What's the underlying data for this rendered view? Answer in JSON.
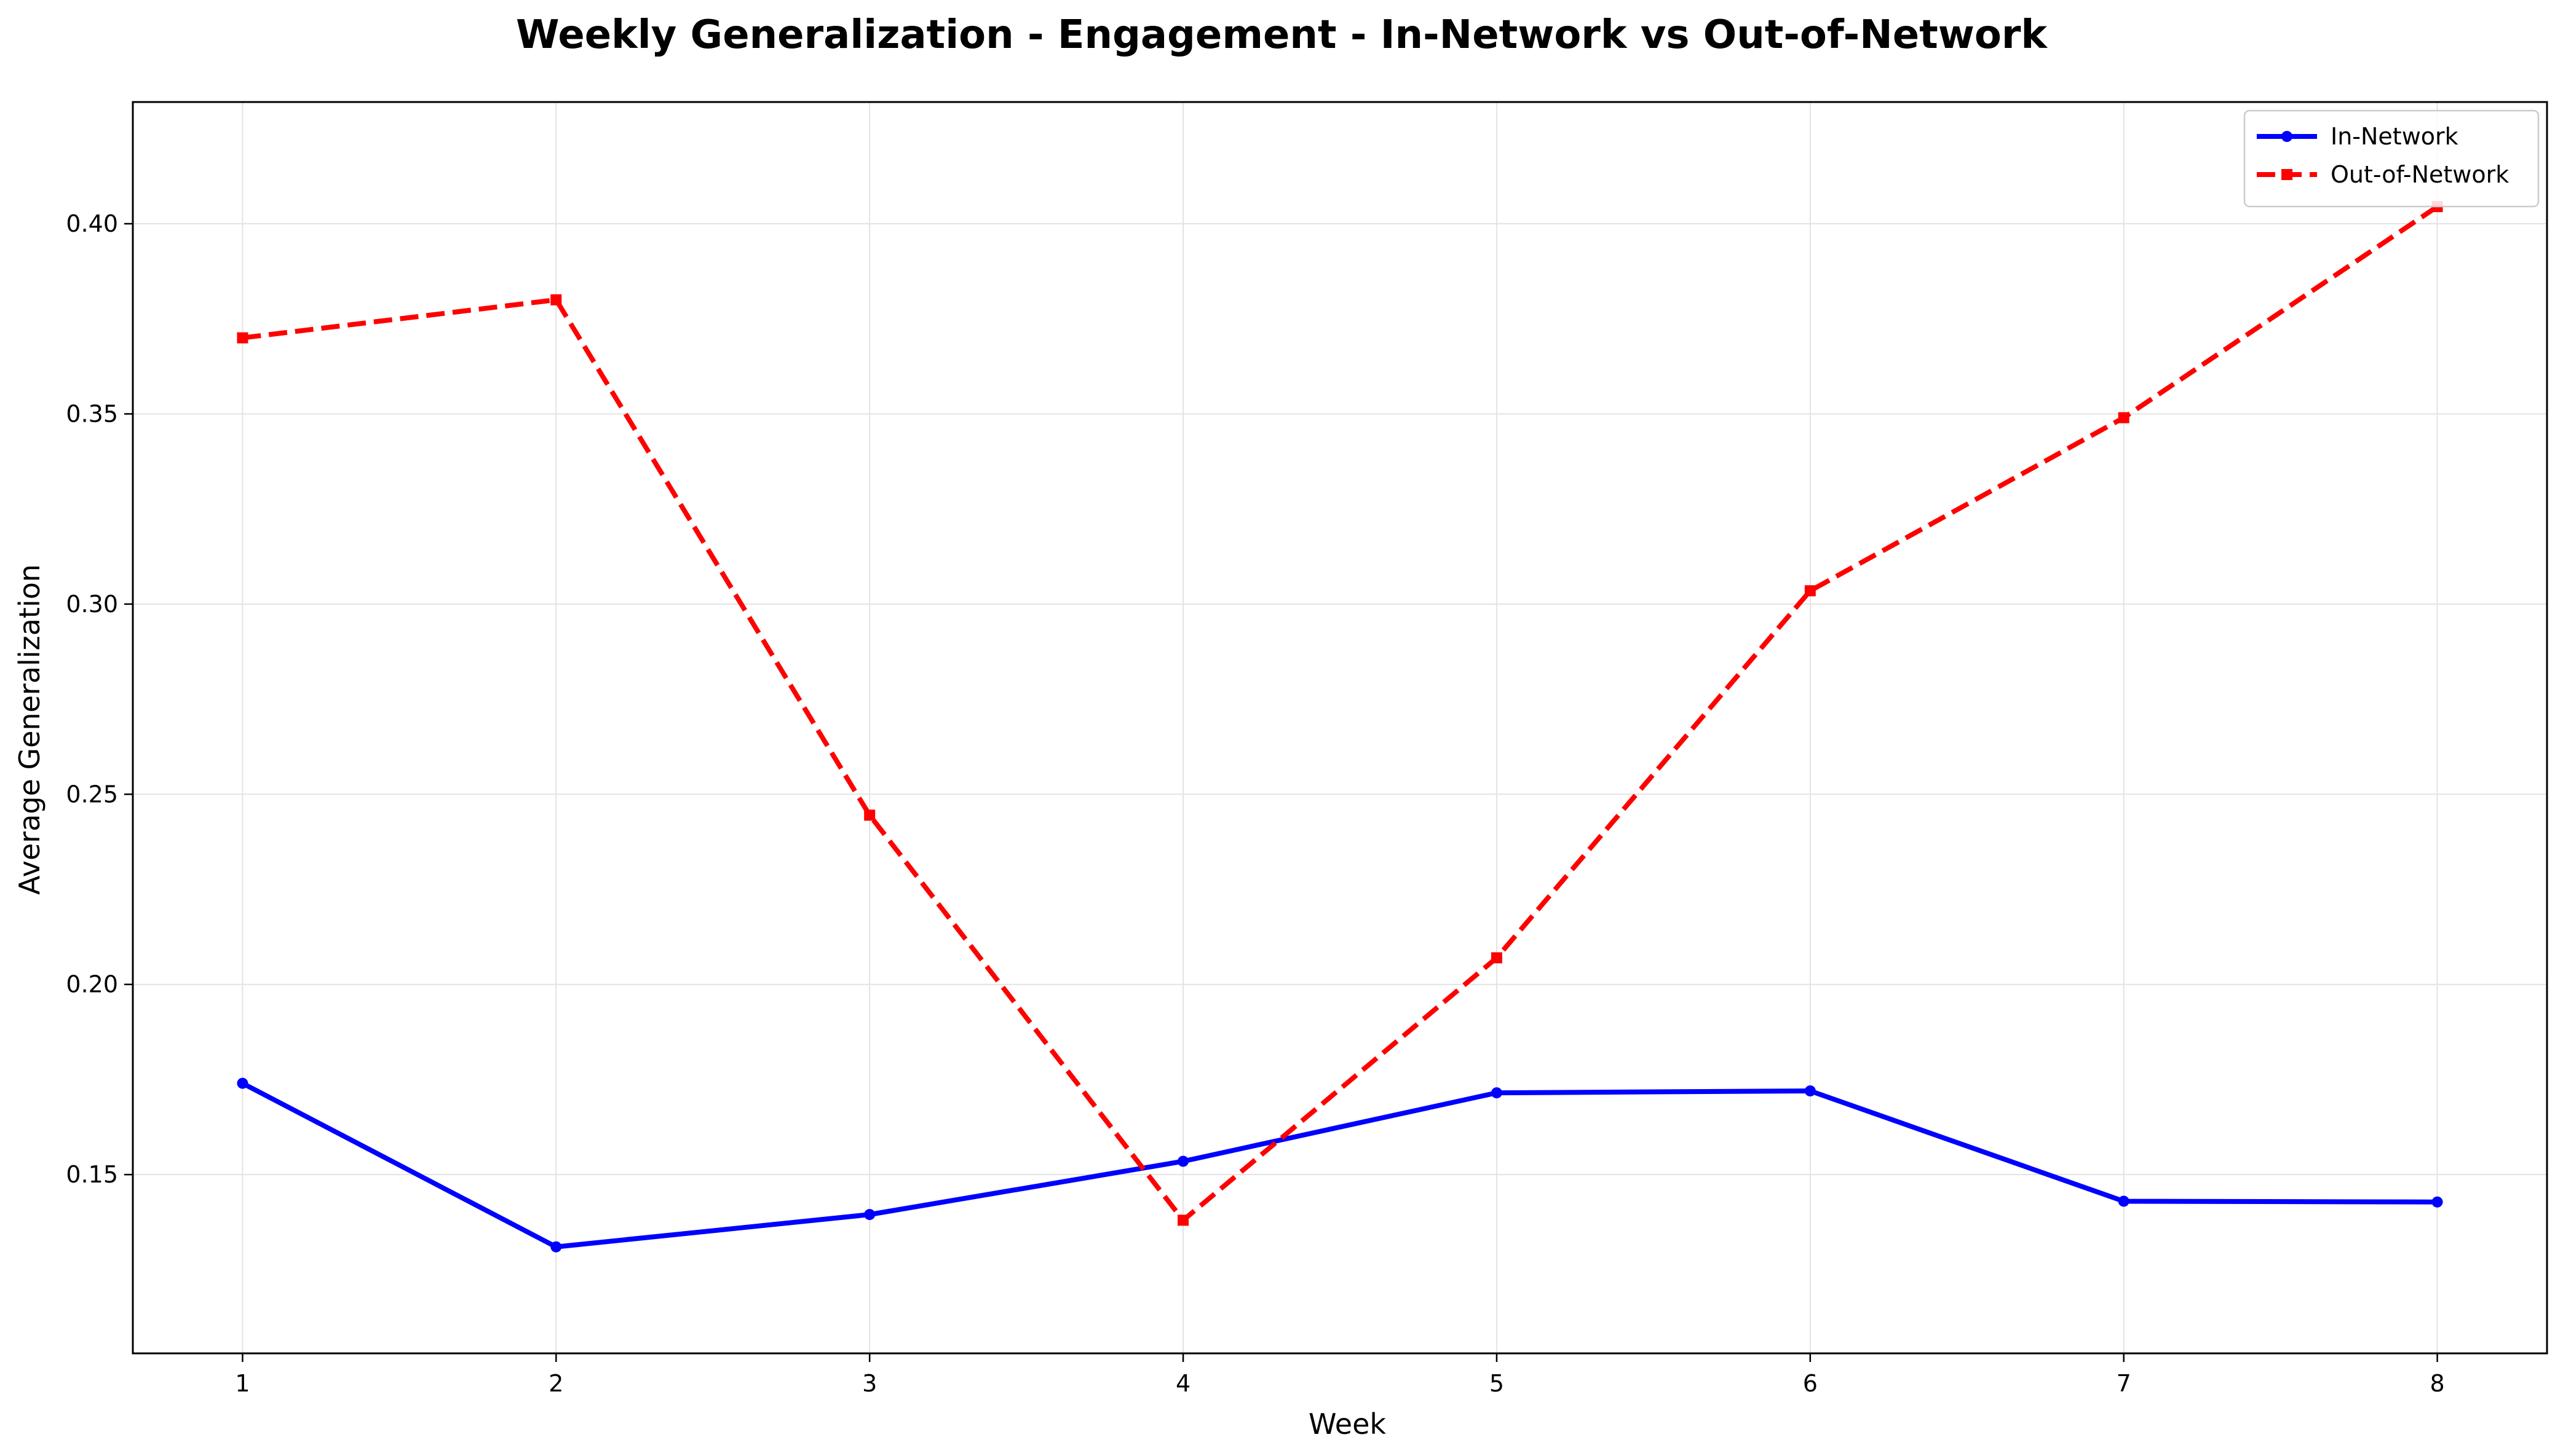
{
  "chart_data": {
    "type": "line",
    "title": "Weekly Generalization - Engagement - In-Network vs Out-of-Network",
    "xlabel": "Week",
    "ylabel": "Average Generalization",
    "x": [
      1,
      2,
      3,
      4,
      5,
      6,
      7,
      8
    ],
    "xlim": [
      0.65,
      8.35
    ],
    "ylim": [
      0.103,
      0.432
    ],
    "yticks": [
      0.15,
      0.2,
      0.25,
      0.3,
      0.35,
      0.4
    ],
    "ytick_labels": [
      "0.15",
      "0.20",
      "0.25",
      "0.30",
      "0.35",
      "0.40"
    ],
    "xtick_labels": [
      "1",
      "2",
      "3",
      "4",
      "5",
      "6",
      "7",
      "8"
    ],
    "grid": true,
    "legend_position": "top-right",
    "series": [
      {
        "name": "In-Network",
        "values": [
          0.174,
          0.131,
          0.1395,
          0.1535,
          0.1715,
          0.172,
          0.143,
          0.1428
        ],
        "color": "#0000ff",
        "line_style": "solid",
        "marker": "circle"
      },
      {
        "name": "Out-of-Network",
        "values": [
          0.37,
          0.38,
          0.2445,
          0.138,
          0.207,
          0.3035,
          0.349,
          0.4045
        ],
        "color": "#ff0000",
        "line_style": "dashed",
        "marker": "square"
      }
    ]
  }
}
